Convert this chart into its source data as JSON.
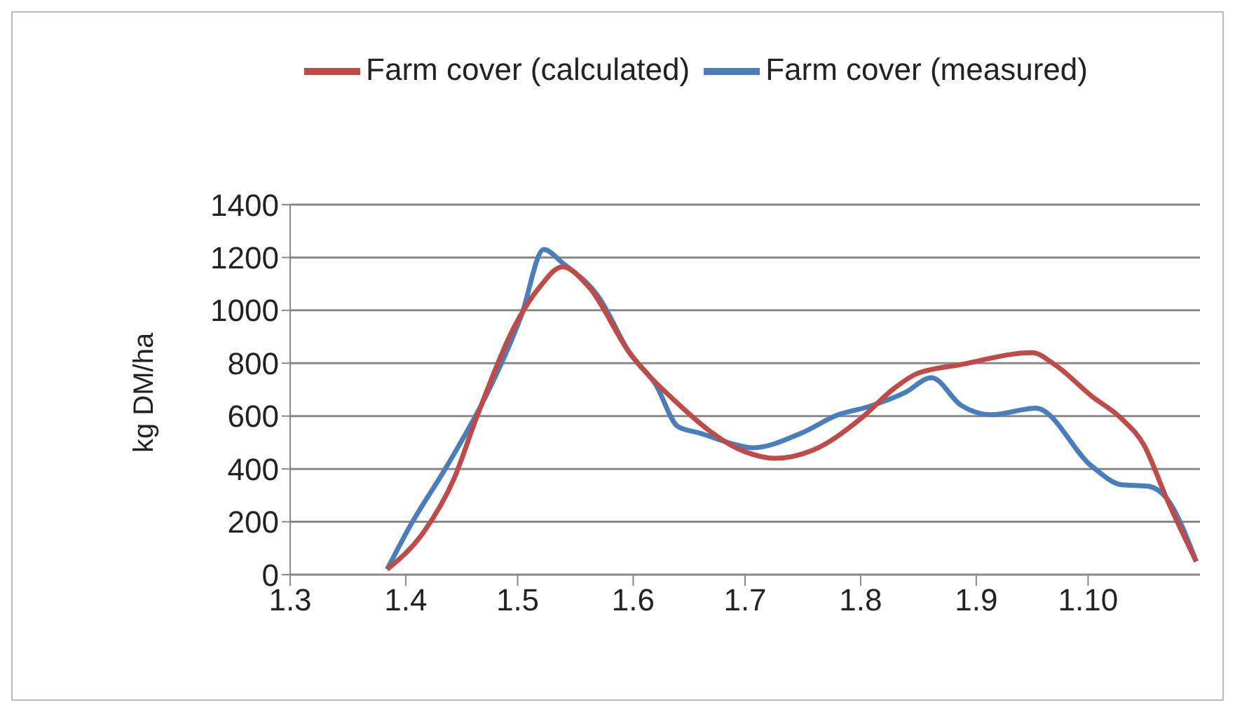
{
  "chart_data": {
    "type": "line",
    "ylabel": "kg DM/ha",
    "xlim": [
      "--03-01",
      "--10-31"
    ],
    "xticks": [
      {
        "value": "--03-01",
        "label": "1.3"
      },
      {
        "value": "--04-01",
        "label": "1.4"
      },
      {
        "value": "--05-01",
        "label": "1.5"
      },
      {
        "value": "--06-01",
        "label": "1.6"
      },
      {
        "value": "--07-01",
        "label": "1.7"
      },
      {
        "value": "--08-01",
        "label": "1.8"
      },
      {
        "value": "--09-01",
        "label": "1.9"
      },
      {
        "value": "--10-01",
        "label": "1.10"
      }
    ],
    "ylim": [
      0,
      1400
    ],
    "yticks": [
      0,
      200,
      400,
      600,
      800,
      1000,
      1200,
      1400
    ],
    "grid": "y",
    "legend": "top",
    "marker": "none",
    "line_style": "solid",
    "series": [
      {
        "name": "Farm cover (measured)",
        "color": "#4a7ebb",
        "x": [
          "--03-27",
          "--04-02",
          "--04-12",
          "--04-23",
          "--05-02",
          "--05-08",
          "--05-13",
          "--05-23",
          "--05-31",
          "--06-07",
          "--06-13",
          "--06-19",
          "--06-29",
          "--07-03",
          "--07-16",
          "--07-26",
          "--08-03",
          "--08-13",
          "--08-20",
          "--08-28",
          "--09-05",
          "--09-17",
          "--10-02",
          "--10-10",
          "--10-17",
          "--10-22",
          "--10-30"
        ],
        "values": [
          20,
          180,
          410,
          690,
          980,
          1230,
          1180,
          1045,
          840,
          720,
          560,
          535,
          490,
          480,
          535,
          605,
          635,
          690,
          745,
          640,
          605,
          630,
          410,
          340,
          335,
          290,
          50
        ]
      },
      {
        "name": "Farm cover (calculated)",
        "color": "#be4b48",
        "x": [
          "--03-27",
          "--04-06",
          "--04-14",
          "--04-20",
          "--04-30",
          "--05-07",
          "--05-13",
          "--05-20",
          "--05-31",
          "--06-12",
          "--07-01",
          "--07-09",
          "--07-19",
          "--08-01",
          "--08-10",
          "--08-16",
          "--08-28",
          "--09-16",
          "--09-22",
          "--10-02",
          "--10-10",
          "--10-16",
          "--10-22",
          "--10-30"
        ],
        "values": [
          20,
          165,
          365,
          595,
          935,
          1090,
          1165,
          1090,
          840,
          660,
          465,
          440,
          470,
          590,
          705,
          760,
          795,
          840,
          795,
          675,
          590,
          490,
          290,
          50
        ]
      }
    ]
  }
}
